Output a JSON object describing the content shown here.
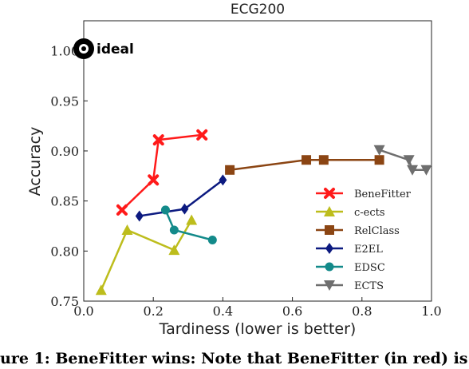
{
  "chart_data": {
    "type": "line",
    "title": "ECG200",
    "xlabel": "Tardiness (lower is better)",
    "ylabel": "Accuracy",
    "xlim": [
      0.0,
      1.0
    ],
    "ylim": [
      0.75,
      1.03
    ],
    "xticks": [
      "0.0",
      "0.2",
      "0.4",
      "0.6",
      "0.8",
      "1.0"
    ],
    "yticks": [
      "0.75",
      "0.80",
      "0.85",
      "0.90",
      "0.95",
      "1.00"
    ],
    "grid": false,
    "legend_position": "lower-right",
    "ideal": {
      "label": "ideal",
      "x": 0.0,
      "y": 1.0
    },
    "series": [
      {
        "name": "BeneFitter",
        "color": "#ff1a1a",
        "marker": "x",
        "x": [
          0.11,
          0.2,
          0.215,
          0.34
        ],
        "y": [
          0.841,
          0.871,
          0.911,
          0.916
        ]
      },
      {
        "name": "c-ects",
        "color": "#bdbd1c",
        "marker": "triangle-up",
        "x": [
          0.05,
          0.125,
          0.26,
          0.31
        ],
        "y": [
          0.761,
          0.821,
          0.801,
          0.831
        ]
      },
      {
        "name": "RelClass",
        "color": "#8b4513",
        "marker": "square",
        "x": [
          0.42,
          0.64,
          0.69,
          0.85
        ],
        "y": [
          0.881,
          0.891,
          0.891,
          0.891
        ]
      },
      {
        "name": "E2EL",
        "color": "#0c1a80",
        "marker": "diamond",
        "x": [
          0.16,
          0.29,
          0.4
        ],
        "y": [
          0.835,
          0.842,
          0.871
        ]
      },
      {
        "name": "EDSC",
        "color": "#138a8a",
        "marker": "circle",
        "x": [
          0.235,
          0.26,
          0.37
        ],
        "y": [
          0.841,
          0.821,
          0.811
        ]
      },
      {
        "name": "ECTS",
        "color": "#6e6e6e",
        "marker": "triangle-down",
        "x": [
          0.85,
          0.935,
          0.945,
          0.985
        ],
        "y": [
          0.901,
          0.891,
          0.881,
          0.881
        ]
      }
    ]
  },
  "caption": "ure 1: BeneFitter wins: Note that BeneFitter (in red) is"
}
